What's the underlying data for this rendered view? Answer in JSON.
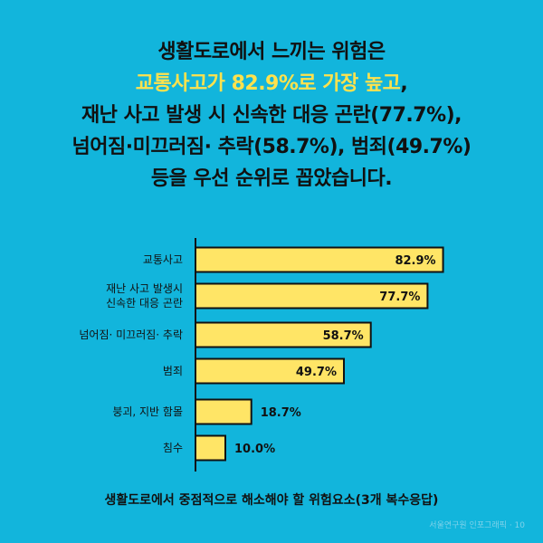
{
  "title": {
    "line1": "생활도로에서 느끼는 위험은",
    "line2_highlight": "교통사고가 82.9%로 가장 높고",
    "line2_rest": ",",
    "line3": "재난 사고 발생 시 신속한 대응 곤란(77.7%),",
    "line4": "넘어짐·미끄러짐· 추락(58.7%), 범죄(49.7%)",
    "line5": "등을 우선 순위로 꼽았습니다."
  },
  "caption": "생활도로에서 중점적으로 해소해야 할 위험요소(3개 복수응답)",
  "credit": "서울연구원 인포그래픽 · 10",
  "colors": {
    "background": "#12b5dc",
    "bar": "#ffe566",
    "highlight": "#ffe24d",
    "text": "#111111"
  },
  "chart_data": {
    "type": "bar",
    "orientation": "horizontal",
    "categories": [
      [
        "교통사고"
      ],
      [
        "재난 사고 발생시",
        "신속한 대응 곤란"
      ],
      [
        "넘어짐· 미끄러짐· 추락"
      ],
      [
        "범죄"
      ],
      [
        "붕괴, 지반 함몰"
      ],
      [
        "침수"
      ]
    ],
    "values": [
      82.9,
      77.7,
      58.7,
      49.7,
      18.7,
      10.0
    ],
    "value_labels": [
      "82.9%",
      "77.7%",
      "58.7%",
      "49.7%",
      "18.7%",
      "10.0%"
    ],
    "xlim": [
      0,
      100
    ],
    "unit": "%",
    "legend": "none",
    "grid": false
  }
}
